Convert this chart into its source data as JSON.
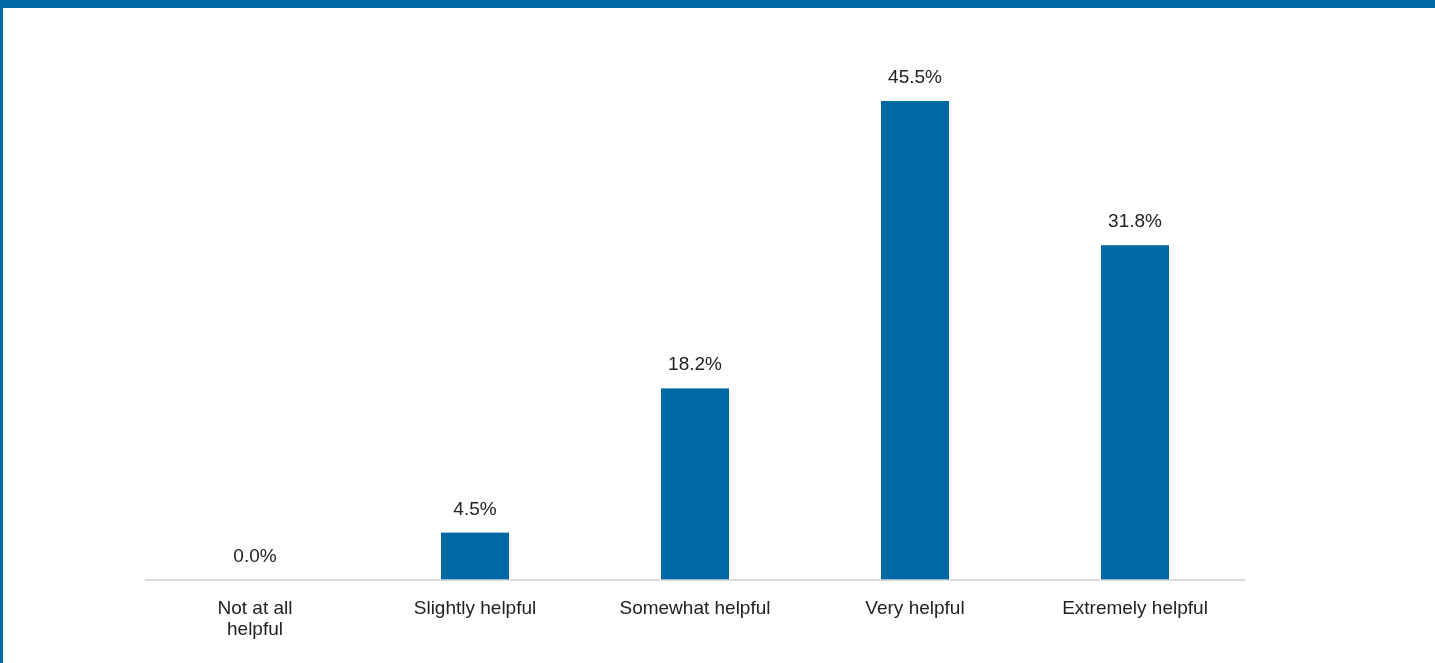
{
  "chart_data": {
    "type": "bar",
    "categories": [
      "Not at all\nhelpful",
      "Slightly helpful",
      "Somewhat helpful",
      "Very helpful",
      "Extremely helpful"
    ],
    "values": [
      0.0,
      4.5,
      18.2,
      45.5,
      31.8
    ],
    "color": "#0068a3",
    "value_labels": [
      "0.0%",
      "4.5%",
      "18.2%",
      "45.5%",
      "31.8%"
    ],
    "grid": false,
    "legend": false
  }
}
